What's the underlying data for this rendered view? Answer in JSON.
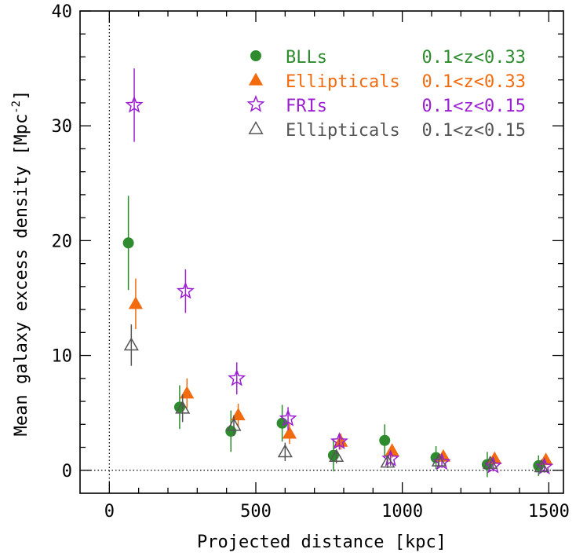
{
  "chart_data": {
    "type": "scatter",
    "xlabel": "Projected distance [kpc]",
    "ylabel": "Mean galaxy excess density [Mpc",
    "ylabel_sup": "-2",
    "ylabel_close": "]",
    "xlim": [
      -100,
      1550
    ],
    "ylim": [
      -2,
      40
    ],
    "xticks": [
      0,
      500,
      1000,
      1500
    ],
    "yticks": [
      0,
      10,
      20,
      30,
      40
    ],
    "xtick_labels": [
      "0",
      "500",
      "1000",
      "1500"
    ],
    "ytick_labels": [
      "0",
      "10",
      "20",
      "30",
      "40"
    ],
    "grid": false,
    "reference_lines": {
      "x": 0,
      "y": 0,
      "style": "dotted"
    },
    "legend_position": "top-right",
    "series": [
      {
        "name": "BLLs",
        "range_label": "0.1<z<0.33",
        "marker": "filled-circle",
        "color": "#2e8b2e",
        "points": [
          {
            "x": 65,
            "y": 19.8,
            "err": 4.1
          },
          {
            "x": 240,
            "y": 5.5,
            "err": 1.9
          },
          {
            "x": 415,
            "y": 3.4,
            "err": 1.8
          },
          {
            "x": 590,
            "y": 4.1,
            "err": 1.6
          },
          {
            "x": 765,
            "y": 1.3,
            "err": 1.4
          },
          {
            "x": 940,
            "y": 2.6,
            "err": 1.4
          },
          {
            "x": 1115,
            "y": 1.1,
            "err": 1.0
          },
          {
            "x": 1290,
            "y": 0.5,
            "err": 1.1
          },
          {
            "x": 1465,
            "y": 0.4,
            "err": 0.9
          }
        ]
      },
      {
        "name": "Ellipticals",
        "range_label": "0.1<z<0.33",
        "marker": "filled-triangle",
        "color": "#f26b0f",
        "points": [
          {
            "x": 90,
            "y": 14.5,
            "err": 2.2
          },
          {
            "x": 265,
            "y": 6.7,
            "err": 1.3
          },
          {
            "x": 440,
            "y": 4.8,
            "err": 1.0
          },
          {
            "x": 615,
            "y": 3.2,
            "err": 0.9
          },
          {
            "x": 790,
            "y": 2.5,
            "err": 0.7
          },
          {
            "x": 965,
            "y": 1.7,
            "err": 0.6
          },
          {
            "x": 1140,
            "y": 1.2,
            "err": 0.5
          },
          {
            "x": 1315,
            "y": 1.0,
            "err": 0.5
          },
          {
            "x": 1490,
            "y": 0.9,
            "err": 0.4
          }
        ]
      },
      {
        "name": "FRIs",
        "range_label": "0.1<z<0.15",
        "marker": "open-star",
        "color": "#9b1fd1",
        "points": [
          {
            "x": 85,
            "y": 31.8,
            "err": 3.2
          },
          {
            "x": 260,
            "y": 15.6,
            "err": 1.9
          },
          {
            "x": 435,
            "y": 8.0,
            "err": 1.4
          },
          {
            "x": 610,
            "y": 4.5,
            "err": 1.0
          },
          {
            "x": 785,
            "y": 2.5,
            "err": 0.7
          },
          {
            "x": 960,
            "y": 1.0,
            "err": 0.6
          },
          {
            "x": 1135,
            "y": 0.7,
            "err": 0.5
          },
          {
            "x": 1310,
            "y": 0.4,
            "err": 0.5
          },
          {
            "x": 1485,
            "y": 0.3,
            "err": 0.5
          }
        ]
      },
      {
        "name": "Ellipticals",
        "range_label": "0.1<z<0.15",
        "marker": "open-triangle",
        "color": "#555555",
        "points": [
          {
            "x": 75,
            "y": 10.9,
            "err": 1.8
          },
          {
            "x": 250,
            "y": 5.4,
            "err": 1.2
          },
          {
            "x": 425,
            "y": 3.9,
            "err": 0.9
          },
          {
            "x": 600,
            "y": 1.6,
            "err": 0.8
          },
          {
            "x": 775,
            "y": 1.2,
            "err": 0.6
          },
          {
            "x": 950,
            "y": 0.7,
            "err": 0.5
          },
          {
            "x": 1125,
            "y": 0.8,
            "err": 0.5
          },
          {
            "x": 1300,
            "y": 0.6,
            "err": 0.4
          },
          {
            "x": 1475,
            "y": 0.3,
            "err": 0.4
          }
        ]
      }
    ]
  }
}
